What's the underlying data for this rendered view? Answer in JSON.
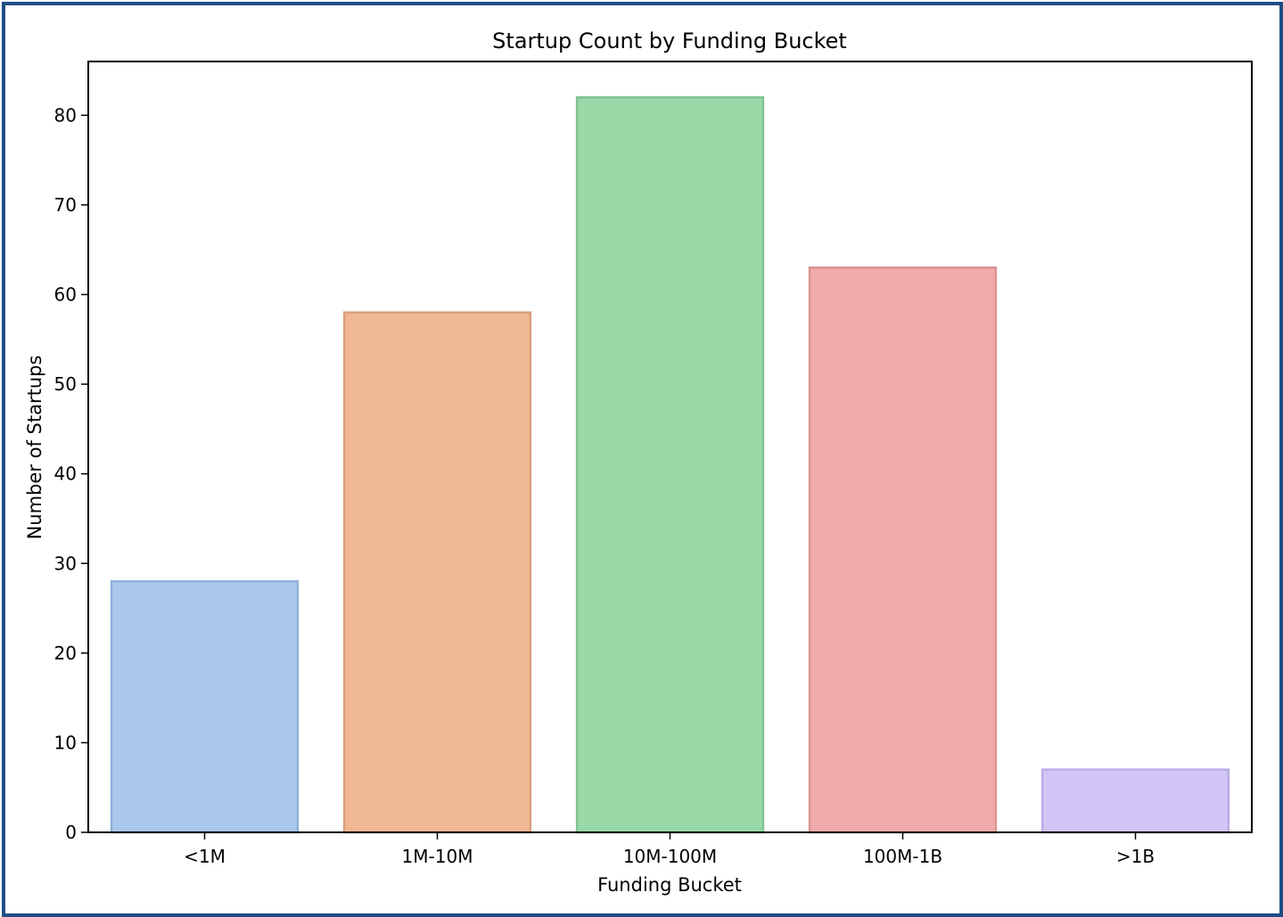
{
  "chart_data": {
    "type": "bar",
    "title": "Startup Count by Funding Bucket",
    "xlabel": "Funding Bucket",
    "ylabel": "Number of Startups",
    "categories": [
      "<1M",
      "1M-10M",
      "10M-100M",
      "100M-1B",
      ">1B"
    ],
    "values": [
      28,
      58,
      82,
      63,
      7
    ],
    "colors": [
      "#aac8ec",
      "#f0b893",
      "#99d9a8",
      "#f1aaaa",
      "#d3c6f6"
    ],
    "edge_colors": [
      "#8fb0d8",
      "#d9a07c",
      "#80c392",
      "#db9292",
      "#b9aee4"
    ],
    "ylim": [
      0,
      86
    ],
    "yticks": [
      0,
      10,
      20,
      30,
      40,
      50,
      60,
      70,
      80
    ],
    "grid": false,
    "legend": "none"
  }
}
